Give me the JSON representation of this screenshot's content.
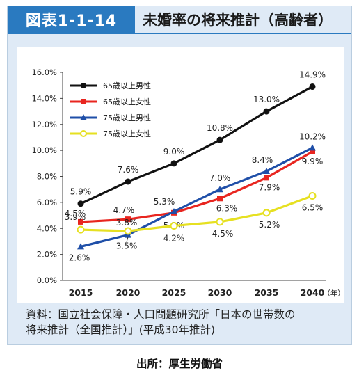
{
  "header": {
    "figure_label": "図表1-1-14",
    "title": "未婚率の将来推計（高齢者）"
  },
  "chart_data": {
    "type": "line",
    "x": [
      "2015",
      "2020",
      "2025",
      "2030",
      "2035",
      "2040"
    ],
    "x_unit": "（年）",
    "y_ticks": [
      "0.0%",
      "2.0%",
      "4.0%",
      "6.0%",
      "8.0%",
      "10.0%",
      "12.0%",
      "14.0%",
      "16.0%"
    ],
    "ylim": [
      0,
      16
    ],
    "grid": false,
    "legend_position": "top-left",
    "series": [
      {
        "name": "65歳以上男性",
        "color": "#111111",
        "marker": "circle-filled",
        "values": [
          5.9,
          7.6,
          9.0,
          10.8,
          13.0,
          14.9
        ],
        "labels": [
          "5.9%",
          "7.6%",
          "9.0%",
          "10.8%",
          "13.0%",
          "14.9%"
        ]
      },
      {
        "name": "65歳以上女性",
        "color": "#e8251f",
        "marker": "square",
        "values": [
          4.5,
          4.7,
          5.2,
          6.3,
          7.9,
          9.9
        ],
        "labels": [
          "4.5%",
          "4.7%",
          "5.2%",
          "6.3%",
          "7.9%",
          "9.9%"
        ]
      },
      {
        "name": "75歳以上男性",
        "color": "#1f4fa8",
        "marker": "triangle",
        "values": [
          2.6,
          3.5,
          5.3,
          7.0,
          8.4,
          10.2
        ],
        "labels": [
          "2.6%",
          "3.5%",
          "5.3%",
          "7.0%",
          "8.4%",
          "10.2%"
        ]
      },
      {
        "name": "75歳以上女性",
        "color": "#e6e021",
        "marker": "circle-open",
        "values": [
          3.9,
          3.8,
          4.2,
          4.5,
          5.2,
          6.5
        ],
        "labels": [
          "3.9%",
          "3.8%",
          "4.2%",
          "4.5%",
          "5.2%",
          "6.5%"
        ]
      }
    ]
  },
  "source_note": {
    "line1": "資料：国立社会保障・人口問題研究所「日本の世帯数の",
    "line2": "将来推計（全国推計）」(平成30年推計)"
  },
  "credit": "出所：厚生労働省"
}
